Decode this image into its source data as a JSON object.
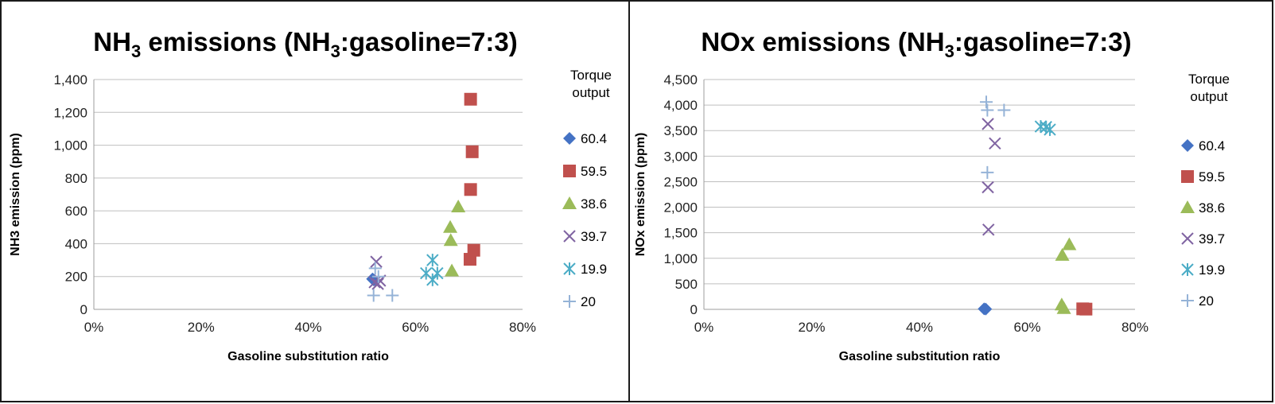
{
  "chart_data": [
    {
      "type": "scatter",
      "title": {
        "pre": "NH",
        "sub": "3",
        "post": " emissions (NH",
        "sub2": "3",
        "post2": ":gasoline=7:3)"
      },
      "xlabel": "Gasoline substitution ratio",
      "ylabel": "NH3 emission (ppm)",
      "xlim": [
        0,
        0.8
      ],
      "ylim": [
        0,
        1400
      ],
      "xticks": [
        "0%",
        "20%",
        "40%",
        "60%",
        "80%"
      ],
      "yticks": [
        "0",
        "200",
        "400",
        "600",
        "800",
        "1,000",
        "1,200",
        "1,400"
      ],
      "grid": true,
      "legend_title": [
        "Torque",
        "output"
      ],
      "legend_position": "right",
      "series": [
        {
          "name": "60.4",
          "marker": "diamond",
          "color": "#4472C4",
          "points": [
            [
              0.52,
              185
            ],
            [
              0.522,
              180
            ]
          ]
        },
        {
          "name": "59.5",
          "marker": "square",
          "color": "#C0504D",
          "points": [
            [
              0.703,
              1280
            ],
            [
              0.706,
              960
            ],
            [
              0.703,
              730
            ],
            [
              0.709,
              360
            ],
            [
              0.702,
              305
            ]
          ]
        },
        {
          "name": "38.6",
          "marker": "triangle",
          "color": "#9BBB59",
          "points": [
            [
              0.68,
              625
            ],
            [
              0.665,
              500
            ],
            [
              0.666,
              420
            ],
            [
              0.668,
              235
            ]
          ]
        },
        {
          "name": "39.7",
          "marker": "x",
          "color": "#8064A2",
          "points": [
            [
              0.527,
              290
            ],
            [
              0.534,
              175
            ],
            [
              0.53,
              155
            ],
            [
              0.524,
              165
            ]
          ]
        },
        {
          "name": "19.9",
          "marker": "asterisk",
          "color": "#4BACC6",
          "points": [
            [
              0.632,
              300
            ],
            [
              0.62,
              220
            ],
            [
              0.641,
              220
            ],
            [
              0.632,
              180
            ]
          ]
        },
        {
          "name": "20",
          "marker": "plus",
          "color": "#95B3D7",
          "points": [
            [
              0.525,
              250
            ],
            [
              0.531,
              200
            ],
            [
              0.522,
              85
            ],
            [
              0.557,
              85
            ]
          ]
        }
      ]
    },
    {
      "type": "scatter",
      "title": {
        "pre": "NOx emissions (NH",
        "sub": "3",
        "post": ":gasoline=7:3)",
        "sub2": "",
        "post2": ""
      },
      "xlabel": "Gasoline substitution ratio",
      "ylabel": "NOx emission (ppm)",
      "xlim": [
        0,
        0.8
      ],
      "ylim": [
        0,
        4500
      ],
      "xticks": [
        "0%",
        "20%",
        "40%",
        "60%",
        "80%"
      ],
      "yticks": [
        "0",
        "500",
        "1,000",
        "1,500",
        "2,000",
        "2,500",
        "3,000",
        "3,500",
        "4,000",
        "4,500"
      ],
      "grid": true,
      "legend_title": [
        "Torque",
        "output"
      ],
      "legend_position": "right",
      "series": [
        {
          "name": "60.4",
          "marker": "diamond",
          "color": "#4472C4",
          "points": [
            [
              0.52,
              10
            ],
            [
              0.523,
              5
            ]
          ]
        },
        {
          "name": "59.5",
          "marker": "square",
          "color": "#C0504D",
          "points": [
            [
              0.703,
              10
            ],
            [
              0.709,
              5
            ]
          ]
        },
        {
          "name": "38.6",
          "marker": "triangle",
          "color": "#9BBB59",
          "points": [
            [
              0.678,
              1270
            ],
            [
              0.665,
              1060
            ],
            [
              0.664,
              90
            ],
            [
              0.668,
              20
            ]
          ]
        },
        {
          "name": "39.7",
          "marker": "x",
          "color": "#8064A2",
          "points": [
            [
              0.527,
              3630
            ],
            [
              0.54,
              3250
            ],
            [
              0.527,
              2390
            ],
            [
              0.528,
              1560
            ]
          ]
        },
        {
          "name": "19.9",
          "marker": "asterisk",
          "color": "#4BACC6",
          "points": [
            [
              0.625,
              3580
            ],
            [
              0.635,
              3570
            ],
            [
              0.642,
              3520
            ]
          ]
        },
        {
          "name": "20",
          "marker": "plus",
          "color": "#95B3D7",
          "points": [
            [
              0.524,
              4060
            ],
            [
              0.526,
              3900
            ],
            [
              0.557,
              3900
            ],
            [
              0.526,
              2680
            ]
          ]
        }
      ]
    }
  ]
}
